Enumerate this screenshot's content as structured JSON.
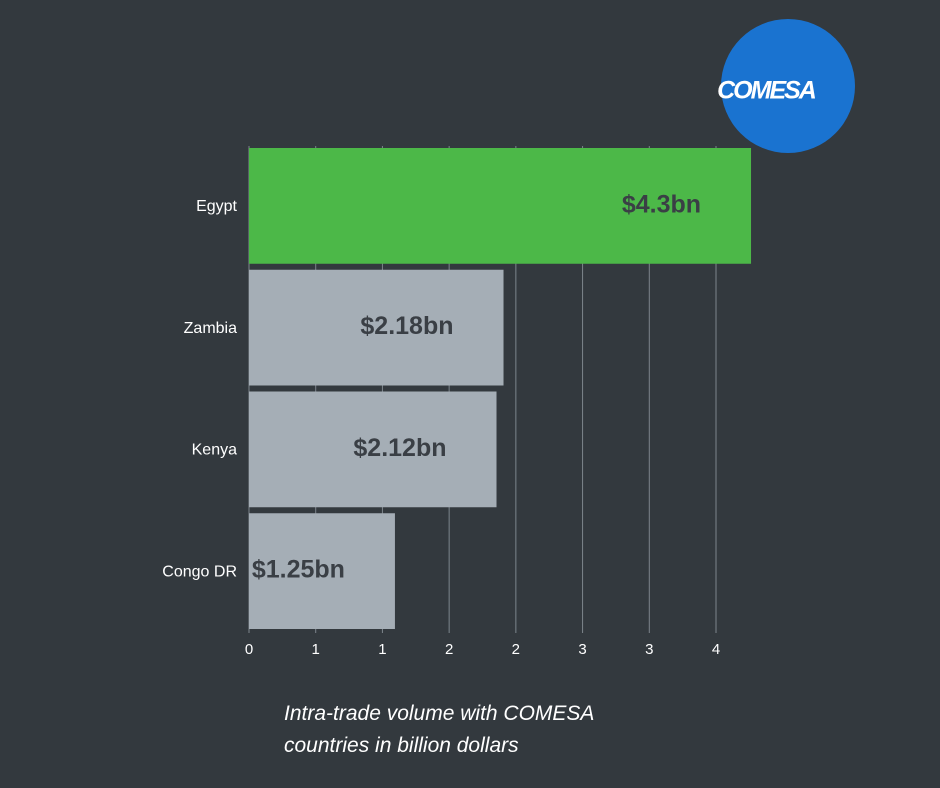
{
  "chart_data": {
    "type": "barh",
    "caption": "Intra-trade volume with COMESA countries in billion dollars",
    "logo": "COMESA",
    "categories": [
      "Egypt",
      "Zambia",
      "Kenya",
      "Congo DR"
    ],
    "values": [
      4.3,
      2.18,
      2.12,
      1.25
    ],
    "value_labels": [
      "$4.3bn",
      "$2.18bn",
      "$2.12bn",
      "$1.25bn"
    ],
    "colors": [
      "#4cb848",
      "#a5aeb6",
      "#a5aeb6",
      "#a5aeb6"
    ],
    "xlim": [
      0,
      4.4
    ],
    "xticks": [
      0,
      {
        "value": 0.5714,
        "label": "1"
      },
      {
        "value": 1.1429,
        "label": "1"
      },
      {
        "value": 1.7143,
        "label": "2"
      },
      {
        "value": 2.2857,
        "label": "2"
      },
      {
        "value": 2.8571,
        "label": "3"
      },
      {
        "value": 3.4286,
        "label": "3"
      },
      4
    ],
    "grid": true
  }
}
